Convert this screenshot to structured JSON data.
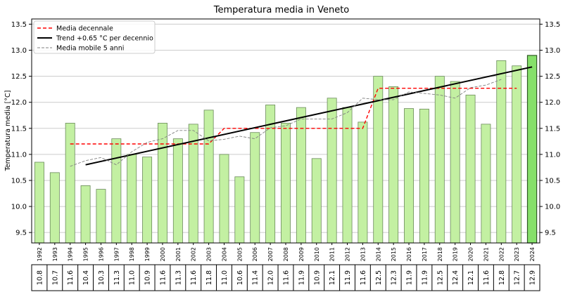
{
  "chart_data": {
    "type": "bar",
    "title": "Temperatura media in Veneto",
    "xlabel": "",
    "ylabel": "Temperatura media [°C]",
    "ylim": [
      9.3,
      13.6
    ],
    "yticks": [
      "9.5",
      "10.0",
      "10.5",
      "11.0",
      "11.5",
      "12.0",
      "12.5",
      "13.0",
      "13.5"
    ],
    "grid": "horizontal",
    "legend_position": "top-left",
    "categories": [
      "1992",
      "1993",
      "1994",
      "1995",
      "1996",
      "1997",
      "1998",
      "1999",
      "2000",
      "2001",
      "2002",
      "2003",
      "2004",
      "2005",
      "2006",
      "2007",
      "2008",
      "2009",
      "2010",
      "2011",
      "2012",
      "2013",
      "2014",
      "2015",
      "2016",
      "2017",
      "2018",
      "2019",
      "2020",
      "2021",
      "2022",
      "2023",
      "2024"
    ],
    "values": [
      10.85,
      10.65,
      11.6,
      10.4,
      10.33,
      11.3,
      11.0,
      10.95,
      11.6,
      11.3,
      11.58,
      11.85,
      11.0,
      10.57,
      11.42,
      11.95,
      11.6,
      11.9,
      10.92,
      12.08,
      11.9,
      11.62,
      12.5,
      12.3,
      11.88,
      11.87,
      12.5,
      12.4,
      12.14,
      11.58,
      12.8,
      12.7,
      12.9
    ],
    "table_values": [
      "10.8",
      "10.7",
      "11.6",
      "10.4",
      "10.3",
      "11.3",
      "11.0",
      "10.9",
      "11.6",
      "11.3",
      "11.6",
      "11.8",
      "11.0",
      "10.6",
      "11.4",
      "12.0",
      "11.6",
      "11.9",
      "10.9",
      "12.1",
      "11.9",
      "11.6",
      "12.5",
      "12.3",
      "11.9",
      "11.9",
      "12.5",
      "12.4",
      "12.1",
      "11.6",
      "12.8",
      "12.7",
      "12.9"
    ],
    "highlight_category": "2024",
    "series": [
      {
        "name": "Media decennale",
        "style": "dashed",
        "color": "#ff0000",
        "points": [
          [
            "1994",
            11.2
          ],
          [
            "2003",
            11.2
          ],
          [
            "2004",
            11.5
          ],
          [
            "2013",
            11.5
          ],
          [
            "2014",
            12.27
          ],
          [
            "2023",
            12.27
          ]
        ]
      },
      {
        "name": "Trend +0.65 °C per decennio",
        "style": "solid",
        "color": "#000000",
        "points": [
          [
            "1995",
            10.8
          ],
          [
            "2024",
            12.68
          ]
        ]
      },
      {
        "name": "Media mobile 5 anni",
        "style": "dashed",
        "color": "#808080",
        "points": [
          [
            "1994",
            10.77
          ],
          [
            "1995",
            10.88
          ],
          [
            "1996",
            10.94
          ],
          [
            "1997",
            10.8
          ],
          [
            "1998",
            11.05
          ],
          [
            "1999",
            11.23
          ],
          [
            "2000",
            11.3
          ],
          [
            "2001",
            11.46
          ],
          [
            "2002",
            11.46
          ],
          [
            "2003",
            11.26
          ],
          [
            "2004",
            11.29
          ],
          [
            "2005",
            11.35
          ],
          [
            "2006",
            11.3
          ],
          [
            "2007",
            11.51
          ],
          [
            "2008",
            11.55
          ],
          [
            "2009",
            11.68
          ],
          [
            "2010",
            11.68
          ],
          [
            "2011",
            11.68
          ],
          [
            "2012",
            11.8
          ],
          [
            "2013",
            12.08
          ],
          [
            "2014",
            12.05
          ],
          [
            "2015",
            12.05
          ],
          [
            "2016",
            12.2
          ],
          [
            "2017",
            12.17
          ],
          [
            "2018",
            12.14
          ],
          [
            "2019",
            12.08
          ],
          [
            "2020",
            12.28
          ],
          [
            "2021",
            12.33
          ],
          [
            "2022",
            12.44
          ]
        ]
      }
    ],
    "colors": {
      "bar_fill": "#c3f0a2",
      "bar_edge": "#6a8a5a",
      "highlight_fill": "#86e06a",
      "highlight_edge": "#2f5a25",
      "grid": "#cccccc"
    }
  }
}
